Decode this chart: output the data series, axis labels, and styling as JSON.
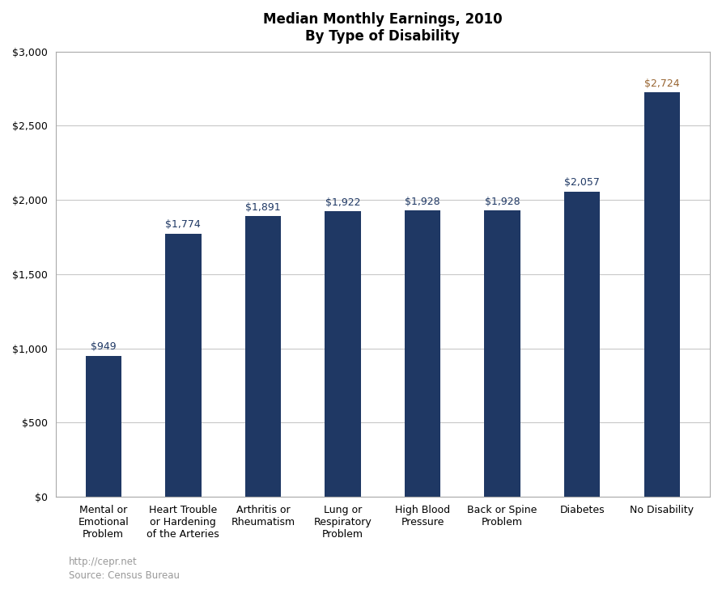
{
  "title_line1": "Median Monthly Earnings, 2010",
  "title_line2": "By Type of Disability",
  "categories": [
    "Mental or\nEmotional\nProblem",
    "Heart Trouble\nor Hardening\nof the Arteries",
    "Arthritis or\nRheumatism",
    "Lung or\nRespiratory\nProblem",
    "High Blood\nPressure",
    "Back or Spine\nProblem",
    "Diabetes",
    "No Disability"
  ],
  "values": [
    949,
    1774,
    1891,
    1922,
    1928,
    1928,
    2057,
    2724
  ],
  "bar_color": "#1F3864",
  "label_color_default": "#1F3864",
  "label_color_last": "#996633",
  "ylim": [
    0,
    3000
  ],
  "yticks": [
    0,
    500,
    1000,
    1500,
    2000,
    2500,
    3000
  ],
  "footer_line1": "http://cepr.net",
  "footer_line2": "Source: Census Bureau",
  "background_color": "#ffffff",
  "grid_color": "#c8c8c8",
  "border_color": "#aaaaaa",
  "title_fontsize": 12,
  "tick_fontsize": 9,
  "label_fontsize": 9,
  "footer_fontsize": 8.5,
  "bar_width": 0.45
}
